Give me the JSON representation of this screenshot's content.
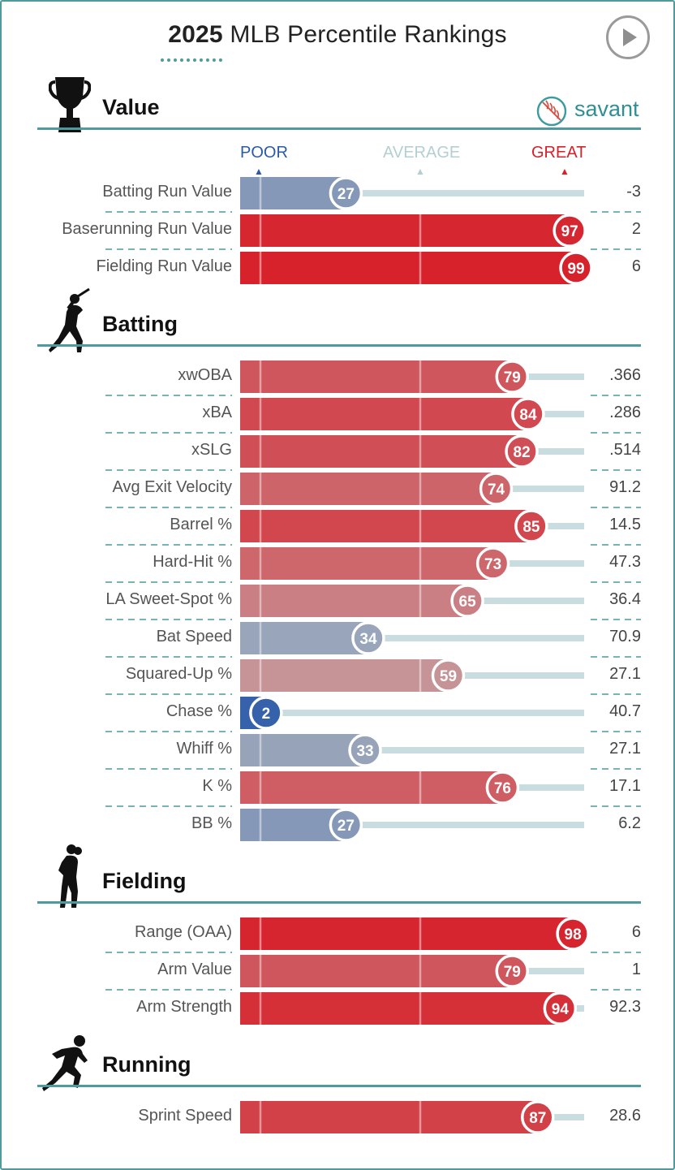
{
  "header": {
    "title_year": "2025",
    "title_rest": " MLB Percentile Rankings",
    "play_icon": "play-button-icon",
    "brand": "savant",
    "brand_icon": "baseball-icon"
  },
  "scale_labels": {
    "poor": "POOR",
    "average": "AVERAGE",
    "great": "GREAT"
  },
  "colors": {
    "accent": "#4e9a9c",
    "poor": "#2a5aa8",
    "great": "#d7202a",
    "track": "#c9dcdf"
  },
  "chart_data": {
    "type": "bar",
    "orientation": "horizontal",
    "xlim": [
      0,
      100
    ],
    "sections": [
      {
        "name": "Value",
        "icon": "trophy-icon",
        "metrics": [
          {
            "label": "Batting Run Value",
            "percentile": 27,
            "value": "-3"
          },
          {
            "label": "Baserunning Run Value",
            "percentile": 97,
            "value": "2"
          },
          {
            "label": "Fielding Run Value",
            "percentile": 99,
            "value": "6"
          }
        ]
      },
      {
        "name": "Batting",
        "icon": "batter-icon",
        "metrics": [
          {
            "label": "xwOBA",
            "percentile": 79,
            "value": ".366"
          },
          {
            "label": "xBA",
            "percentile": 84,
            "value": ".286"
          },
          {
            "label": "xSLG",
            "percentile": 82,
            "value": ".514"
          },
          {
            "label": "Avg Exit Velocity",
            "percentile": 74,
            "value": "91.2"
          },
          {
            "label": "Barrel %",
            "percentile": 85,
            "value": "14.5"
          },
          {
            "label": "Hard-Hit %",
            "percentile": 73,
            "value": "47.3"
          },
          {
            "label": "LA Sweet-Spot %",
            "percentile": 65,
            "value": "36.4"
          },
          {
            "label": "Bat Speed",
            "percentile": 34,
            "value": "70.9"
          },
          {
            "label": "Squared-Up %",
            "percentile": 59,
            "value": "27.1"
          },
          {
            "label": "Chase %",
            "percentile": 2,
            "value": "40.7"
          },
          {
            "label": "Whiff %",
            "percentile": 33,
            "value": "27.1"
          },
          {
            "label": "K %",
            "percentile": 76,
            "value": "17.1"
          },
          {
            "label": "BB %",
            "percentile": 27,
            "value": "6.2"
          }
        ]
      },
      {
        "name": "Fielding",
        "icon": "fielder-icon",
        "metrics": [
          {
            "label": "Range (OAA)",
            "percentile": 98,
            "value": "6"
          },
          {
            "label": "Arm Value",
            "percentile": 79,
            "value": "1"
          },
          {
            "label": "Arm Strength",
            "percentile": 94,
            "value": "92.3"
          }
        ]
      },
      {
        "name": "Running",
        "icon": "runner-icon",
        "metrics": [
          {
            "label": "Sprint Speed",
            "percentile": 87,
            "value": "28.6"
          }
        ]
      }
    ]
  }
}
